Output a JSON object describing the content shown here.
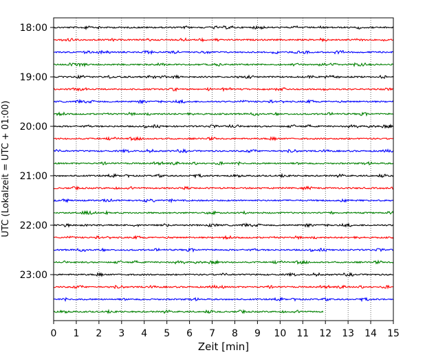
{
  "chart_data": {
    "type": "line",
    "chart_kind": "helicorder",
    "xlabel": "Zeit  [min]",
    "ylabel": "UTC (Lokalzeit = UTC + 01:00)",
    "xlim": [
      0,
      15
    ],
    "x_ticks": [
      0,
      1,
      2,
      3,
      4,
      5,
      6,
      7,
      8,
      9,
      10,
      11,
      12,
      13,
      14,
      15
    ],
    "y_ticks": [
      "18:00",
      "19:00",
      "20:00",
      "21:00",
      "22:00",
      "23:00"
    ],
    "grid": "vertical dotted at every minute",
    "trace_colors": [
      "#000000",
      "#ff0000",
      "#0000ff",
      "#008000"
    ],
    "trace_count": 24,
    "last_trace_end_min": 11.9,
    "trace_amplitude_note": "low background noise"
  }
}
